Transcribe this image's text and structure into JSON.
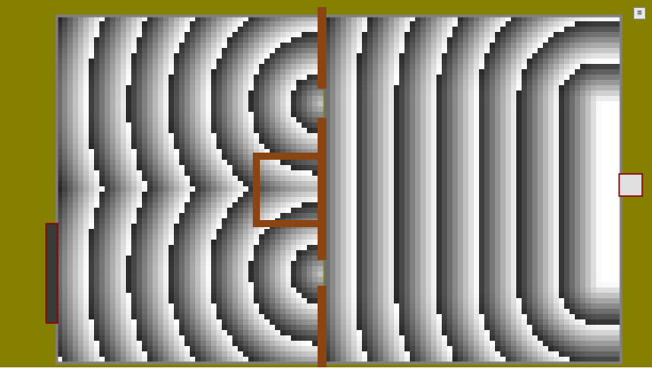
{
  "colors": {
    "page_background": "#ffffff",
    "field_background": "#858000",
    "wall": "#8b4513",
    "room_border": "#808080",
    "door_frame": "#8b0000",
    "wave_dark": "#000000",
    "wave_light": "#ffffff"
  },
  "simulation": {
    "mode": "wave-interference-pattern",
    "source": "right-side-emitter",
    "barrier": "center-vertical-wall-with-gaps"
  },
  "menu_icon": "menu-icon"
}
